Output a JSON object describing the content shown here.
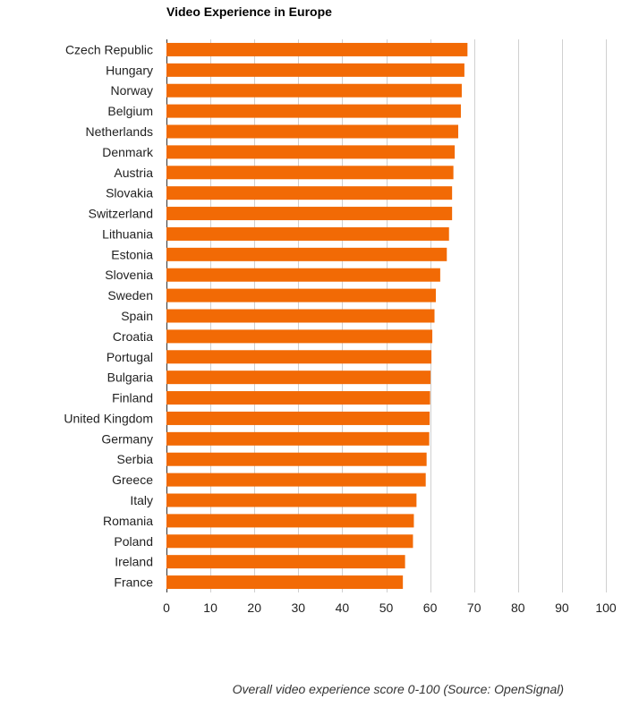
{
  "chart_data": {
    "type": "bar",
    "orientation": "horizontal",
    "title": "Video Experience in Europe",
    "caption": "Overall video experience score 0-100 (Source: OpenSignal)",
    "categories": [
      "Czech Republic",
      "Hungary",
      "Norway",
      "Belgium",
      "Netherlands",
      "Denmark",
      "Austria",
      "Slovakia",
      "Switzerland",
      "Lithuania",
      "Estonia",
      "Slovenia",
      "Sweden",
      "Spain",
      "Croatia",
      "Portugal",
      "Bulgaria",
      "Finland",
      "United Kingdom",
      "Germany",
      "Serbia",
      "Greece",
      "Italy",
      "Romania",
      "Poland",
      "Ireland",
      "France"
    ],
    "values": [
      68.5,
      67.8,
      67.2,
      67.0,
      66.4,
      65.6,
      65.3,
      65.0,
      65.0,
      64.3,
      63.8,
      62.3,
      61.3,
      61.0,
      60.5,
      60.3,
      60.1,
      60.0,
      59.9,
      59.8,
      59.2,
      59.0,
      56.9,
      56.3,
      56.1,
      54.3,
      53.8
    ],
    "xlim": [
      0,
      100
    ],
    "xticks": [
      0,
      10,
      20,
      30,
      40,
      50,
      60,
      70,
      80,
      90,
      100
    ],
    "grid": true,
    "bar_color": "#f26a05",
    "grid_color": "#d0d0d0"
  }
}
